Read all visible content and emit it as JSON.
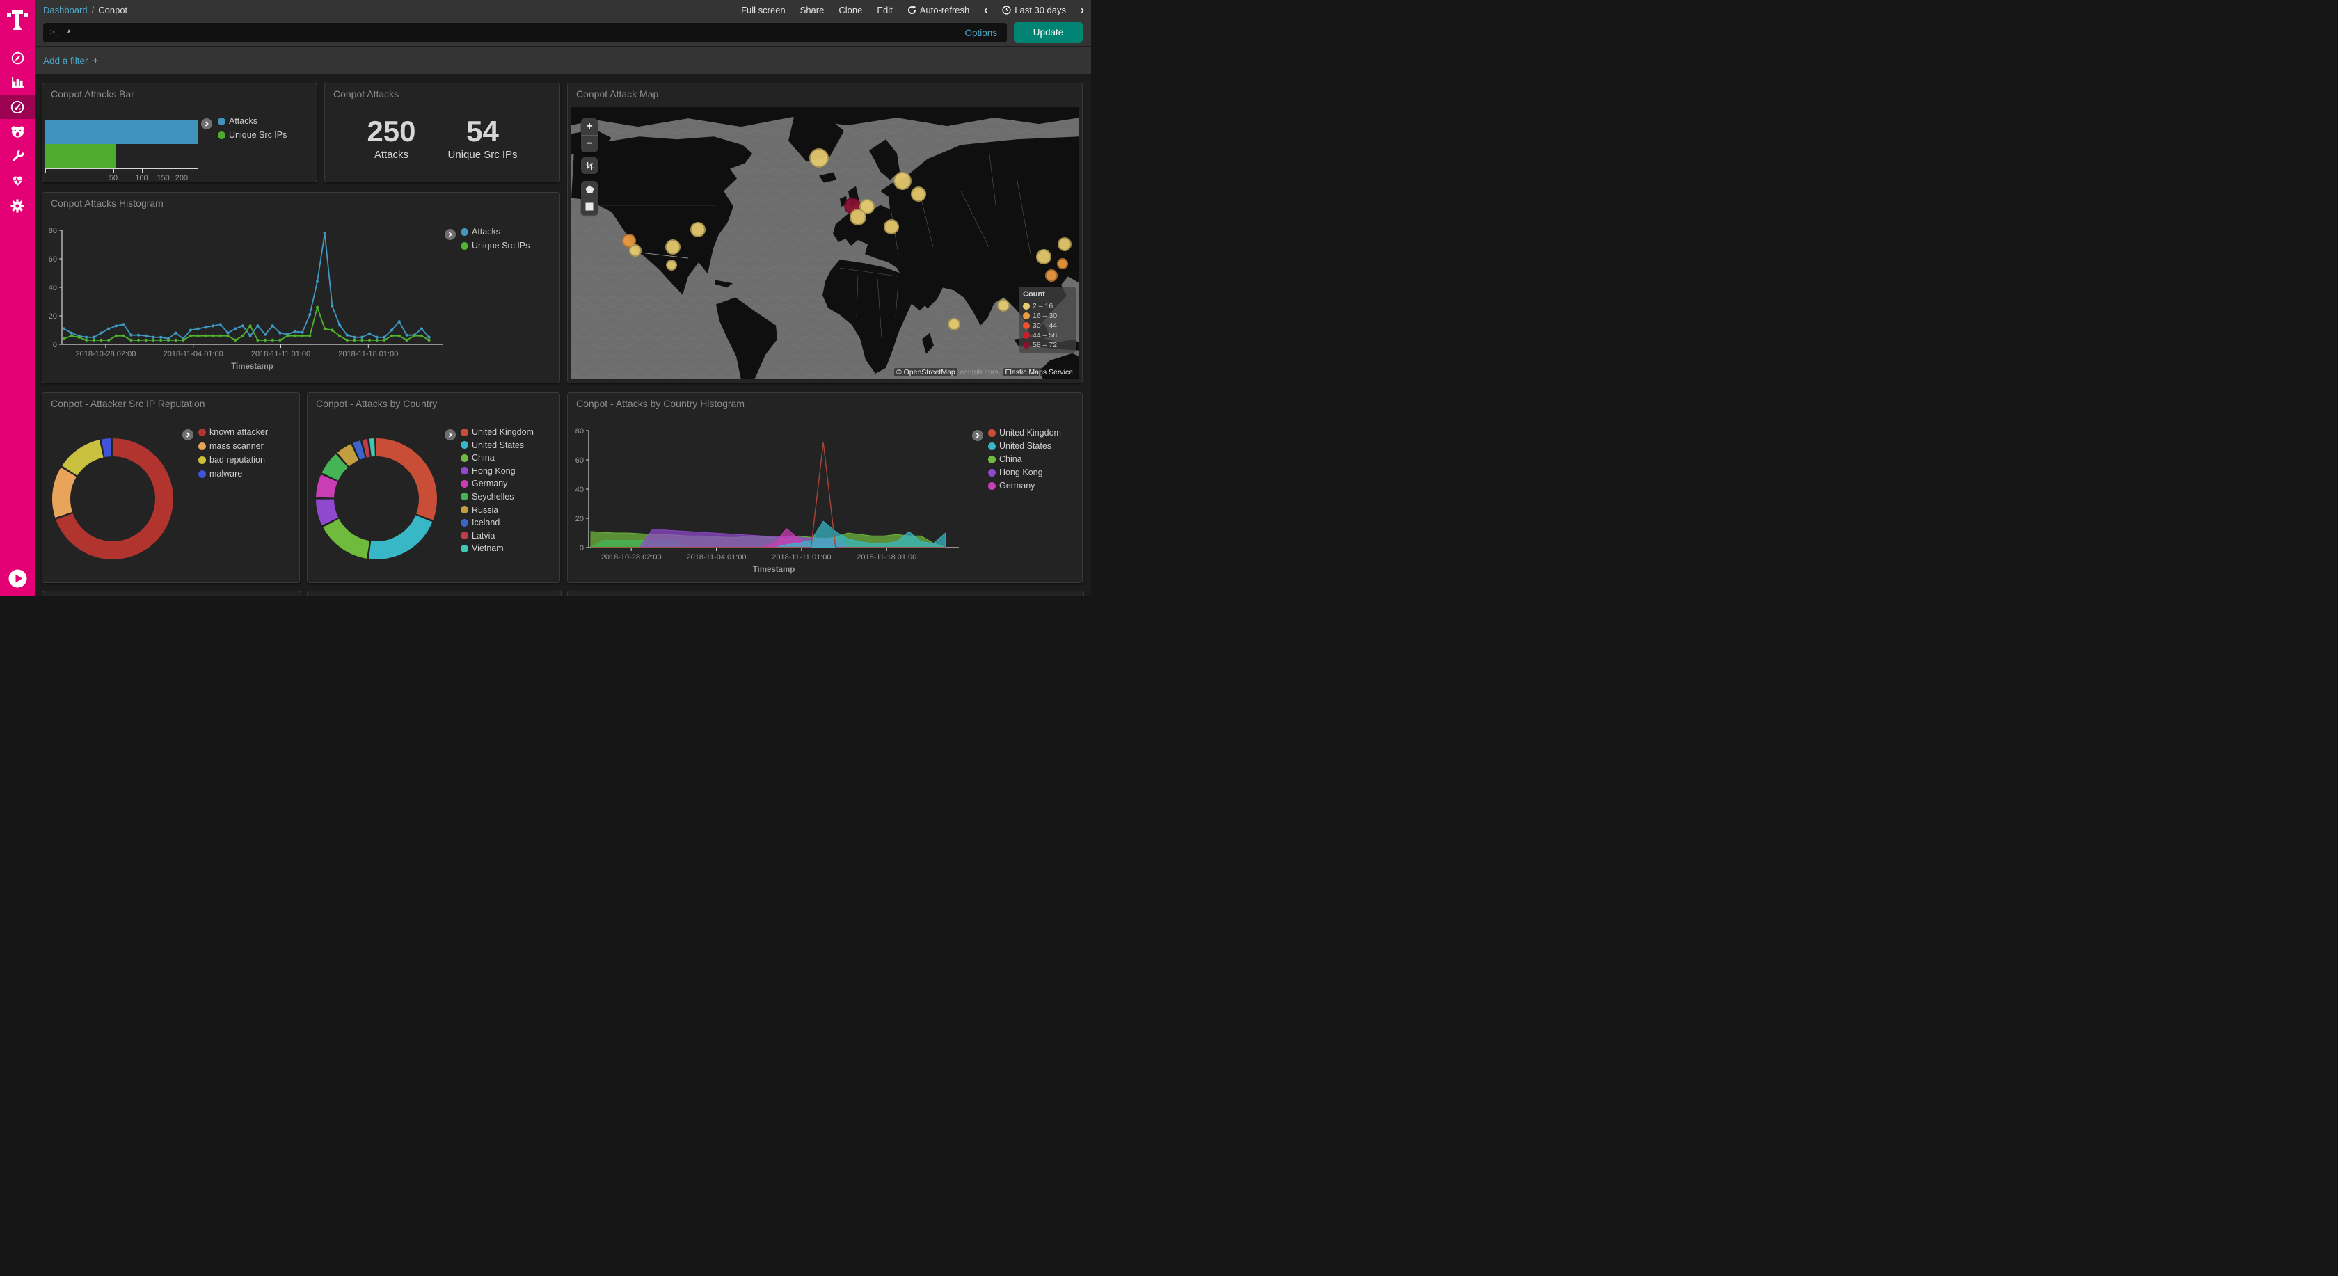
{
  "sidebar": {
    "brand_icon": "telekom-t-logo",
    "brand_color": "#e20074",
    "icons": [
      "compass-icon",
      "bar-chart-icon",
      "dashboard-icon",
      "bear-icon",
      "wrench-icon",
      "heartbeat-icon",
      "gear-icon"
    ],
    "active_icon": "dashboard-icon",
    "collapse_icon": "play-icon"
  },
  "topnav": {
    "breadcrumb_link": "Dashboard",
    "breadcrumb_sep": "/",
    "breadcrumb_current": "Conpot",
    "actions": [
      "Full screen",
      "Share",
      "Clone",
      "Edit"
    ],
    "auto_refresh_label": "Auto-refresh",
    "prev_icon": "‹",
    "time_range": "Last 30 days",
    "next_icon": "›"
  },
  "querybar": {
    "prompt": ">_",
    "query_value": "*",
    "options_label": "Options",
    "update_label": "Update"
  },
  "filterbar": {
    "add_filter_label": "Add a filter",
    "plus": "+"
  },
  "panels": {
    "attacks_bar": {
      "title": "Conpot Attacks Bar",
      "chart_data": {
        "type": "bar",
        "orientation": "horizontal",
        "scale": "sqrt",
        "xlim": [
          0,
          250
        ],
        "x_ticks": [
          50,
          100,
          150,
          200
        ],
        "series": [
          {
            "name": "Attacks",
            "value": 250,
            "color": "#3f93bd"
          },
          {
            "name": "Unique Src IPs",
            "value": 54,
            "color": "#4fab2e"
          }
        ]
      }
    },
    "attacks_metric": {
      "title": "Conpot Attacks",
      "metrics": [
        {
          "value": "250",
          "label": "Attacks"
        },
        {
          "value": "54",
          "label": "Unique Src IPs"
        }
      ]
    },
    "attack_map": {
      "title": "Conpot Attack Map",
      "controls": [
        "zoom-in",
        "zoom-out",
        "crop",
        "polygon",
        "rectangle"
      ],
      "legend": {
        "title": "Count",
        "buckets": [
          {
            "range": "2 – 16",
            "color": "#e8cd6f"
          },
          {
            "range": "16 – 30",
            "color": "#ee9b40"
          },
          {
            "range": "30 – 44",
            "color": "#f4502e"
          },
          {
            "range": "44 – 58",
            "color": "#d01b2a"
          },
          {
            "range": "58 – 72",
            "color": "#8c1030"
          }
        ]
      },
      "attribution": {
        "prefix": "©",
        "osm": "OpenStreetMap",
        "contributors": "contributors,",
        "elastic": "Elastic Maps Service"
      },
      "markers": [
        {
          "x": 48.8,
          "y": 18.6,
          "r": 14,
          "color": "#e8cd6f"
        },
        {
          "x": 65.3,
          "y": 27.2,
          "r": 13,
          "color": "#e8cd6f"
        },
        {
          "x": 68.4,
          "y": 31.9,
          "r": 11,
          "color": "#e8cd6f"
        },
        {
          "x": 55.4,
          "y": 36.2,
          "r": 12,
          "color": "#8c1030"
        },
        {
          "x": 58.3,
          "y": 36.5,
          "r": 11,
          "color": "#e8cd6f"
        },
        {
          "x": 56.5,
          "y": 40.5,
          "r": 12,
          "color": "#e8cd6f"
        },
        {
          "x": 63.1,
          "y": 43.9,
          "r": 11,
          "color": "#e8cd6f"
        },
        {
          "x": 11.4,
          "y": 49.0,
          "r": 10,
          "color": "#ee9b40"
        },
        {
          "x": 12.6,
          "y": 52.8,
          "r": 9,
          "color": "#e8cd6f"
        },
        {
          "x": 25.0,
          "y": 44.9,
          "r": 11,
          "color": "#e8cd6f"
        },
        {
          "x": 20.0,
          "y": 51.3,
          "r": 11,
          "color": "#e8cd6f"
        },
        {
          "x": 19.7,
          "y": 58.0,
          "r": 8,
          "color": "#e8cd6f"
        },
        {
          "x": 93.1,
          "y": 55.1,
          "r": 11,
          "color": "#e8cd6f"
        },
        {
          "x": 94.6,
          "y": 61.8,
          "r": 9,
          "color": "#ee9b40"
        },
        {
          "x": 97.3,
          "y": 50.5,
          "r": 10,
          "color": "#e8cd6f"
        },
        {
          "x": 96.8,
          "y": 57.5,
          "r": 8,
          "color": "#ee9b40"
        },
        {
          "x": 85.2,
          "y": 73.0,
          "r": 9,
          "color": "#e8cd6f"
        },
        {
          "x": 75.4,
          "y": 79.7,
          "r": 9,
          "color": "#e8cd6f"
        }
      ]
    },
    "attacks_histogram": {
      "title": "Conpot Attacks Histogram",
      "chart_data": {
        "type": "line",
        "xlabel": "Timestamp",
        "ylim": [
          0,
          80
        ],
        "y_ticks": [
          80,
          60,
          40,
          20,
          0
        ],
        "x_ticks": [
          "2018-10-28 02:00",
          "2018-11-04 01:00",
          "2018-11-11 01:00",
          "2018-11-18 01:00"
        ],
        "series": [
          {
            "name": "Attacks",
            "color": "#3f98c1",
            "values": [
              11,
              8,
              6,
              5,
              5,
              8,
              11,
              13,
              14,
              6.5,
              6.5,
              6,
              5,
              5,
              4,
              8,
              4,
              10,
              11,
              12,
              13,
              14,
              8,
              11,
              13,
              6,
              13,
              7,
              13,
              8,
              7,
              9,
              8.5,
              21,
              44,
              78,
              27,
              13.5,
              6.5,
              5,
              5,
              7.5,
              5,
              5,
              10,
              16,
              6.5,
              6.5,
              11,
              5
            ]
          },
          {
            "name": "Unique Src IPs",
            "color": "#4eb32d",
            "values": [
              4,
              6,
              5,
              3,
              3,
              3,
              3,
              6,
              6,
              3,
              3,
              3,
              3,
              3,
              3,
              3,
              3,
              6,
              6,
              6,
              6,
              6,
              6,
              3,
              6,
              13,
              3,
              3,
              3,
              3,
              6,
              6,
              6,
              6,
              26,
              11,
              10,
              6,
              3,
              3,
              3,
              3,
              3,
              3,
              6,
              6,
              3,
              6,
              6,
              3
            ]
          }
        ]
      }
    },
    "reputation_donut": {
      "title": "Conpot - Attacker Src IP Reputation",
      "chart_data": {
        "type": "pie",
        "donut": true,
        "slices": [
          {
            "label": "known attacker",
            "pct": 71,
            "color": "#b1342e"
          },
          {
            "label": "mass scanner",
            "pct": 14,
            "color": "#e9a45c"
          },
          {
            "label": "bad reputation",
            "pct": 12.5,
            "color": "#c9c03f"
          },
          {
            "label": "malware",
            "pct": 2.5,
            "color": "#3f54d6"
          }
        ]
      }
    },
    "country_donut": {
      "title": "Conpot - Attacks by Country",
      "chart_data": {
        "type": "pie",
        "donut": true,
        "slices": [
          {
            "label": "United Kingdom",
            "pct": 32.5,
            "color": "#ca4d37"
          },
          {
            "label": "United States",
            "pct": 22.0,
            "color": "#38b8c7"
          },
          {
            "label": "China",
            "pct": 15.5,
            "color": "#70ba3e"
          },
          {
            "label": "Hong Kong",
            "pct": 7.5,
            "color": "#9049ce"
          },
          {
            "label": "Germany",
            "pct": 6.5,
            "color": "#ca3db5"
          },
          {
            "label": "Seychelles",
            "pct": 6.5,
            "color": "#44b457"
          },
          {
            "label": "Russia",
            "pct": 4.5,
            "color": "#c49d3f"
          },
          {
            "label": "Iceland",
            "pct": 2.2,
            "color": "#3d65c9"
          },
          {
            "label": "Latvia",
            "pct": 1.4,
            "color": "#bf3c4a"
          },
          {
            "label": "Vietnam",
            "pct": 1.4,
            "color": "#41c8b4"
          }
        ]
      }
    },
    "country_histogram": {
      "title": "Conpot - Attacks by Country Histogram",
      "legend": [
        {
          "label": "United Kingdom",
          "color": "#ca4d37"
        },
        {
          "label": "United States",
          "color": "#38b8c7"
        },
        {
          "label": "China",
          "color": "#70ba3e"
        },
        {
          "label": "Hong Kong",
          "color": "#9049ce"
        },
        {
          "label": "Germany",
          "color": "#ca3db5"
        }
      ],
      "chart_data": {
        "type": "area",
        "xlabel": "Timestamp",
        "ylim": [
          0,
          80
        ],
        "y_ticks": [
          80,
          60,
          40,
          20,
          0
        ],
        "x_ticks": [
          "2018-10-28 02:00",
          "2018-11-04 01:00",
          "2018-11-11 01:00",
          "2018-11-18 01:00"
        ],
        "series": [
          {
            "name": "China",
            "color": "#70ba3e",
            "draw": "area",
            "values": [
              11,
              10.5,
              10,
              10,
              9.5,
              9,
              9,
              8.5,
              8,
              8,
              7.5,
              7,
              7,
              8,
              7.5,
              7,
              6,
              8,
              7,
              6,
              7,
              10,
              9,
              8,
              8,
              9,
              8,
              8,
              3,
              0
            ]
          },
          {
            "name": "Seychelles",
            "color": "#44b457",
            "draw": "area",
            "values": [
              0,
              5,
              5,
              5,
              5,
              5,
              5,
              5,
              0,
              0,
              0,
              0,
              0,
              0,
              0,
              0,
              0,
              0,
              0,
              0,
              0,
              0,
              0,
              0,
              0,
              0,
              0,
              0,
              0,
              0
            ]
          },
          {
            "name": "Hong Kong",
            "color": "#9049ce",
            "draw": "area",
            "values": [
              0,
              0,
              0,
              0,
              0,
              12,
              12,
              11.5,
              11,
              10.5,
              10,
              9.5,
              9,
              8.5,
              8,
              7.5,
              7.5,
              7,
              6.5,
              6.5,
              6,
              0,
              0,
              0,
              0,
              0,
              0,
              0,
              0,
              0
            ]
          },
          {
            "name": "Germany",
            "color": "#ca3db5",
            "draw": "area",
            "values": [
              0,
              0,
              0,
              0,
              0,
              0,
              0,
              0,
              0,
              0,
              0,
              0,
              0,
              0,
              0,
              3,
              13,
              6,
              0,
              0,
              0,
              0,
              0,
              0,
              0,
              0,
              0,
              0,
              0,
              0
            ]
          },
          {
            "name": "United States",
            "color": "#38b8c7",
            "draw": "area",
            "values": [
              0,
              0,
              0,
              0,
              0,
              0,
              0,
              0,
              0,
              0,
              0,
              0,
              0,
              0,
              0,
              0,
              2,
              3,
              5,
              18,
              11,
              6,
              4,
              3,
              3,
              4,
              11,
              4,
              3,
              10
            ]
          },
          {
            "name": "United Kingdom",
            "color": "#a8453a",
            "draw": "line",
            "values": [
              0,
              0,
              0,
              0,
              0,
              0,
              0,
              0,
              0,
              0,
              0,
              0,
              0,
              0,
              0,
              0,
              0,
              0,
              0,
              72,
              0,
              0,
              0,
              0,
              0,
              0,
              0,
              0,
              0,
              0
            ]
          }
        ]
      }
    }
  }
}
